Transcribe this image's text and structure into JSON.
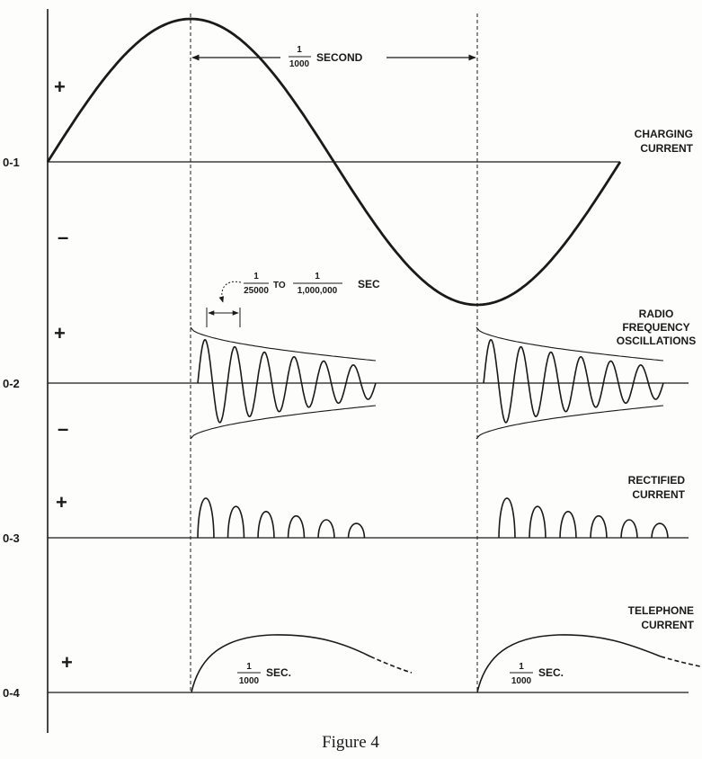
{
  "caption": "Figure 4",
  "channels": [
    {
      "axis_label": "0-1",
      "plus": "+",
      "minus": "–",
      "name_lines": [
        "CHARGING",
        "CURRENT"
      ]
    },
    {
      "axis_label": "0-2",
      "plus": "+",
      "minus": "–",
      "name_lines": [
        "RADIO",
        "FREQUENCY",
        "OSCILLATIONS"
      ]
    },
    {
      "axis_label": "0-3",
      "plus": "+",
      "name_lines": [
        "RECTIFIED",
        "CURRENT"
      ]
    },
    {
      "axis_label": "0-4",
      "plus": "+",
      "name_lines": [
        "TELEPHONE",
        "CURRENT"
      ]
    }
  ],
  "period_annotation": {
    "num": "1",
    "den": "1000",
    "unit": "SECOND"
  },
  "oscillation_period_annotation": {
    "from_num": "1",
    "from_den": "25000",
    "to": "TO",
    "to_num": "1",
    "to_den": "1,000,000",
    "unit": "SEC"
  },
  "telephone_annotation": {
    "num": "1",
    "den": "1000",
    "unit": "SEC."
  },
  "colors": {
    "ink": "#1a1a1a",
    "paper": "#fdfdfb"
  }
}
